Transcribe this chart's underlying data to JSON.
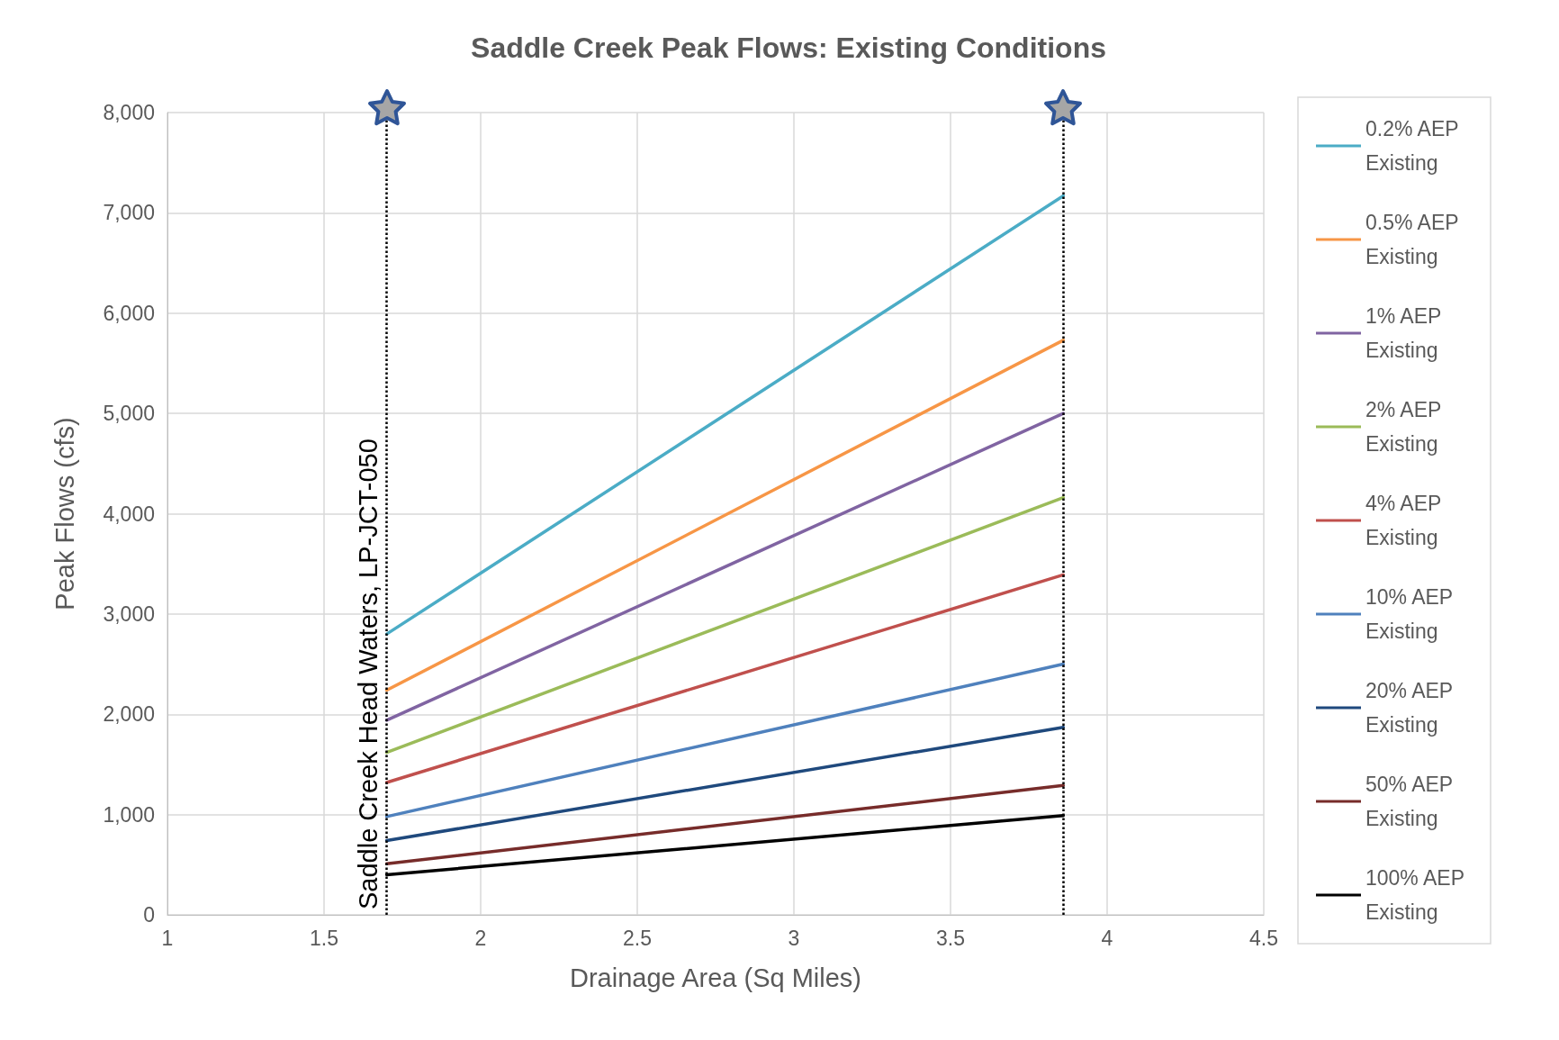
{
  "chart_data": {
    "type": "line",
    "title": "Saddle Creek Peak Flows: Existing Conditions",
    "xlabel": "Drainage Area (Sq Miles)",
    "ylabel": "Peak Flows (cfs)",
    "x": [
      1.7,
      3.86
    ],
    "series": [
      {
        "name": "0.2% AEP Existing",
        "color": "#4bacc6",
        "values": [
          2800,
          7170
        ]
      },
      {
        "name": "0.5% AEP Existing",
        "color": "#f79646",
        "values": [
          2240,
          5730
        ]
      },
      {
        "name": "1% AEP Existing",
        "color": "#8064a2",
        "values": [
          1940,
          5000
        ]
      },
      {
        "name": "2% AEP Existing",
        "color": "#9bbb59",
        "values": [
          1620,
          4160
        ]
      },
      {
        "name": "4% AEP Existing",
        "color": "#c0504d",
        "values": [
          1320,
          3390
        ]
      },
      {
        "name": "10% AEP Existing",
        "color": "#4f81bd",
        "values": [
          980,
          2500
        ]
      },
      {
        "name": "20% AEP Existing",
        "color": "#1f497d",
        "values": [
          740,
          1870
        ]
      },
      {
        "name": "50% AEP Existing",
        "color": "#772c2a",
        "values": [
          510,
          1290
        ]
      },
      {
        "name": "100% AEP Existing",
        "color": "#000000",
        "values": [
          400,
          990
        ]
      }
    ],
    "xlim": [
      1,
      4.5
    ],
    "xticks": [
      1,
      1.5,
      2,
      2.5,
      3,
      3.5,
      4,
      4.5
    ],
    "ylim": [
      0,
      8000
    ],
    "yticks": [
      0,
      {
        "value": 1000,
        "label": "1,000"
      },
      {
        "value": 2000,
        "label": "2,000"
      },
      {
        "value": 3000,
        "label": "3,000"
      },
      {
        "value": 4000,
        "label": "4,000"
      },
      {
        "value": 5000,
        "label": "5,000"
      },
      {
        "value": 6000,
        "label": "6,000"
      },
      {
        "value": 7000,
        "label": "7,000"
      },
      {
        "value": 8000,
        "label": "8,000"
      }
    ],
    "ref_lines": [
      {
        "axis": "x",
        "value": 1.7,
        "label": "Saddle Creek Head Waters, LP-JCT-050",
        "color": "#000000",
        "line_style": "dotted"
      },
      {
        "axis": "x",
        "value": 3.86,
        "color": "#000000",
        "line_style": "dotted"
      }
    ],
    "grid": true,
    "legend": "right",
    "marker": "none",
    "line_style": "solid"
  }
}
